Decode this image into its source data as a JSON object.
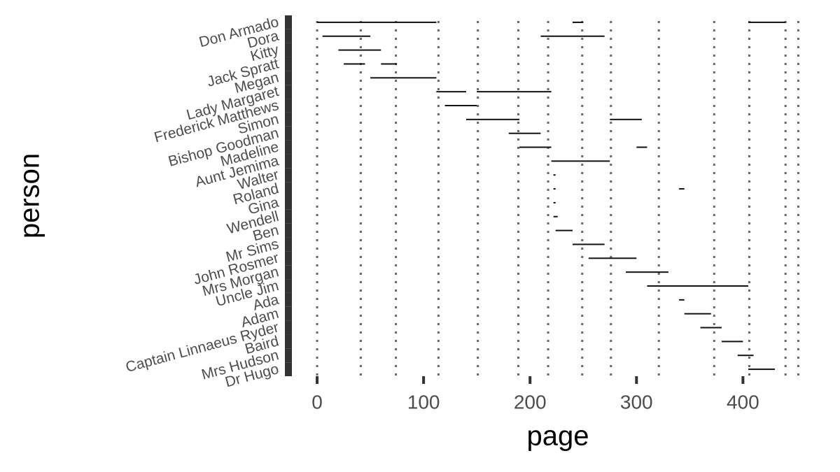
{
  "chart_data": {
    "type": "timeline",
    "x_label": "page",
    "y_label": "person",
    "xlim": [
      -2,
      455
    ],
    "xticks": [
      0,
      100,
      200,
      300,
      400
    ],
    "vlines": [
      0,
      41,
      74,
      114,
      151,
      189,
      217,
      249,
      276,
      321,
      373,
      406,
      440,
      452
    ],
    "color": "#111111",
    "persons": [
      {
        "name": "Don Armado",
        "spans": [
          [
            0,
            112
          ],
          [
            240,
            250
          ],
          [
            405,
            440
          ]
        ]
      },
      {
        "name": "Dora",
        "spans": [
          [
            5,
            50
          ],
          [
            210,
            270
          ]
        ]
      },
      {
        "name": "Kitty",
        "spans": [
          [
            20,
            60
          ]
        ]
      },
      {
        "name": "Jack Spratt",
        "spans": [
          [
            25,
            45
          ],
          [
            60,
            75
          ]
        ]
      },
      {
        "name": "Megan",
        "spans": [
          [
            50,
            112
          ]
        ]
      },
      {
        "name": "Lady Margaret",
        "spans": [
          [
            112,
            140
          ],
          [
            150,
            220
          ]
        ]
      },
      {
        "name": "Frederick Matthews",
        "spans": [
          [
            120,
            150
          ]
        ]
      },
      {
        "name": "Simon",
        "spans": [
          [
            140,
            190
          ],
          [
            275,
            305
          ]
        ]
      },
      {
        "name": "Bishop Goodman",
        "spans": [
          [
            180,
            210
          ]
        ]
      },
      {
        "name": "Madeline",
        "spans": [
          [
            190,
            220
          ],
          [
            300,
            310
          ]
        ]
      },
      {
        "name": "Aunt Jemima",
        "spans": [
          [
            220,
            275
          ]
        ]
      },
      {
        "name": "Walter",
        "spans": [
          [
            222,
            224
          ]
        ]
      },
      {
        "name": "Roland",
        "spans": [
          [
            222,
            224
          ],
          [
            340,
            345
          ]
        ]
      },
      {
        "name": "Gina",
        "spans": [
          [
            222,
            224
          ]
        ]
      },
      {
        "name": "Wendell",
        "spans": [
          [
            222,
            226
          ]
        ]
      },
      {
        "name": "Ben",
        "spans": [
          [
            224,
            240
          ]
        ]
      },
      {
        "name": "Mr Sims",
        "spans": [
          [
            240,
            270
          ]
        ]
      },
      {
        "name": "John Rosmer",
        "spans": [
          [
            255,
            300
          ]
        ]
      },
      {
        "name": "Mrs Morgan",
        "spans": [
          [
            290,
            330
          ]
        ]
      },
      {
        "name": "Uncle Jim",
        "spans": [
          [
            310,
            405
          ]
        ]
      },
      {
        "name": "Ada",
        "spans": [
          [
            340,
            345
          ]
        ]
      },
      {
        "name": "Adam",
        "spans": [
          [
            345,
            370
          ]
        ]
      },
      {
        "name": "Captain Linnaeus Ryder",
        "spans": [
          [
            360,
            380
          ]
        ]
      },
      {
        "name": "Baird",
        "spans": [
          [
            380,
            400
          ]
        ]
      },
      {
        "name": "Mrs Hudson",
        "spans": [
          [
            395,
            410
          ]
        ]
      },
      {
        "name": "Dr Hugo",
        "spans": [
          [
            405,
            430
          ]
        ]
      }
    ]
  }
}
